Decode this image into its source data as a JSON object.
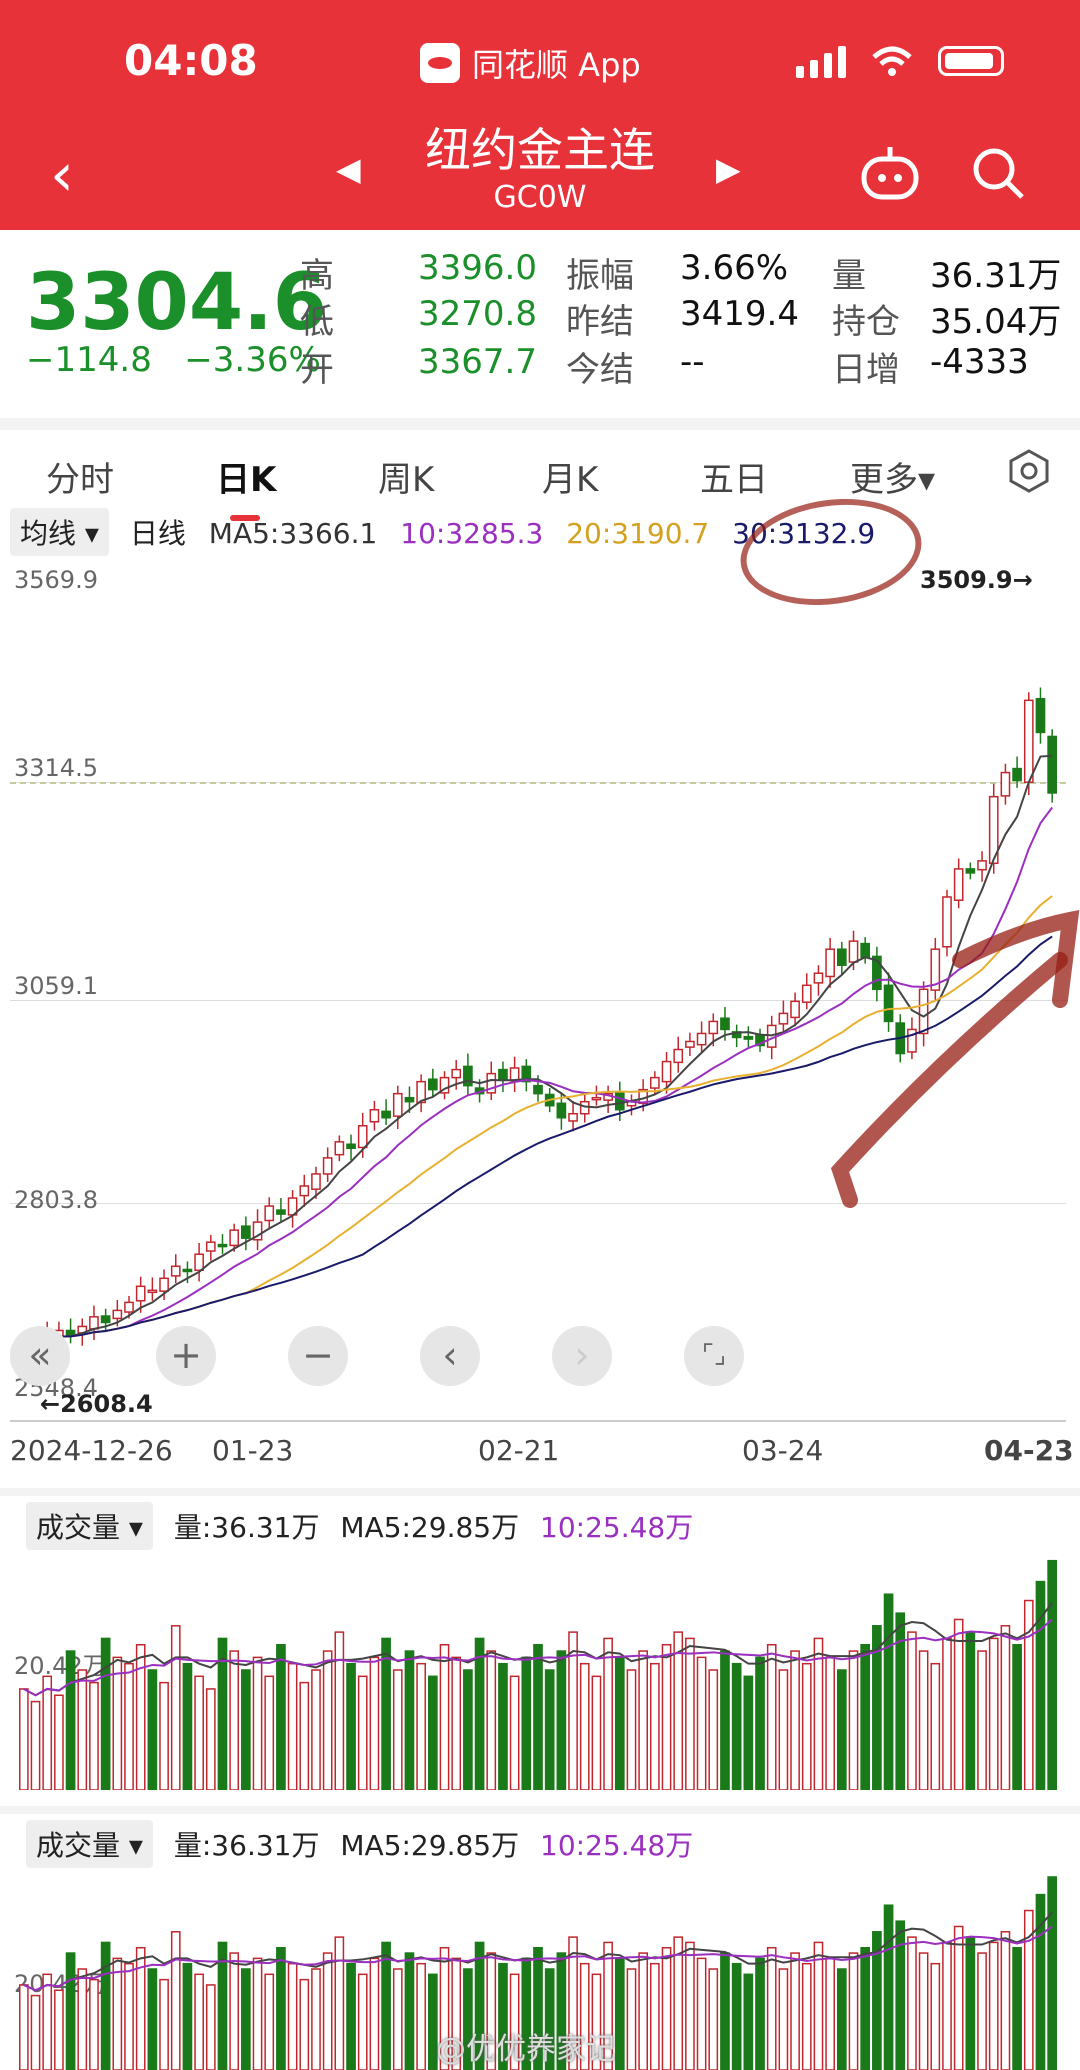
{
  "status": {
    "time": "04:08",
    "app": "同花顺 App"
  },
  "header": {
    "title": "纽约金主连",
    "code": "GC0W",
    "back": "‹",
    "prev": "◀",
    "next": "▶",
    "robot": "robot-icon",
    "search": "search-icon"
  },
  "quote": {
    "price": "3304.6",
    "change": "−114.8",
    "pct": "−3.36%",
    "rows": [
      {
        "l1": "高",
        "v1": "3396.0",
        "l2": "振幅",
        "v2": "3.66%",
        "l3": "量",
        "v3": "36.31万"
      },
      {
        "l1": "低",
        "v1": "3270.8",
        "l2": "昨结",
        "v2": "3419.4",
        "l3": "持仓",
        "v3": "35.04万"
      },
      {
        "l1": "开",
        "v1": "3367.7",
        "l2": "今结",
        "v2": "--",
        "l3": "日增",
        "v3": "-4333"
      }
    ]
  },
  "tabs": [
    "分时",
    "日K",
    "周K",
    "月K",
    "五日",
    "更多▾"
  ],
  "ma": {
    "label": "均线 ▾",
    "period": "日线",
    "ma5": "MA5:3366.1",
    "ma10": "10:3285.3",
    "ma20": "20:3190.7",
    "ma30": "30:3132.9"
  },
  "kline": {
    "yticks": [
      "3569.9",
      "3314.5",
      "3059.1",
      "2803.8",
      "2548.4"
    ],
    "high_label": "3509.9→",
    "low_label": "←2608.4",
    "xticks": [
      "2024-12-26",
      "01-23",
      "02-21",
      "03-24",
      "04-23"
    ]
  },
  "controls": [
    "«",
    "+",
    "−",
    "‹",
    "›",
    "⌜⌟"
  ],
  "volume": {
    "label": "成交量 ▾",
    "vol": "量:36.31万",
    "ma5": "MA5:29.85万",
    "ma10": "10:25.48万",
    "ytick": "20.42万"
  },
  "watermark": "@优优养家记",
  "colors": {
    "up": "#c0272d",
    "down": "#1a7a1a",
    "ma5": "#444444",
    "ma10": "#9a2fc0",
    "ma20": "#e8b030",
    "ma30": "#1a1a6a",
    "header": "#e8323a"
  },
  "chart_data": {
    "type": "candlestick",
    "ylim": [
      2548.4,
      3569.9
    ],
    "close": [
      2620,
      2625,
      2630,
      2635,
      2628,
      2640,
      2652,
      2645,
      2660,
      2670,
      2690,
      2685,
      2700,
      2715,
      2710,
      2730,
      2745,
      2740,
      2760,
      2750,
      2770,
      2790,
      2780,
      2800,
      2815,
      2830,
      2850,
      2870,
      2862,
      2890,
      2910,
      2900,
      2930,
      2920,
      2945,
      2935,
      2950,
      2960,
      2940,
      2930,
      2955,
      2948,
      2962,
      2945,
      2930,
      2915,
      2900,
      2905,
      2920,
      2925,
      2930,
      2910,
      2920,
      2935,
      2950,
      2970,
      2985,
      2995,
      3005,
      3020,
      3010,
      3000,
      2998,
      2990,
      3015,
      3030,
      3045,
      3065,
      3080,
      3110,
      3090,
      3120,
      3100,
      3060,
      3020,
      2980,
      3010,
      3060,
      3110,
      3175,
      3210,
      3205,
      3220,
      3300,
      3330,
      3320,
      3420,
      3380,
      3304.6
    ],
    "volume": [
      16,
      14,
      18,
      15,
      22,
      19,
      17,
      24,
      21,
      20,
      23,
      19,
      17,
      26,
      20,
      18,
      16,
      24,
      22,
      19,
      21,
      18,
      23,
      20,
      17,
      19,
      22,
      25,
      20,
      18,
      21,
      24,
      19,
      22,
      20,
      18,
      23,
      21,
      19,
      24,
      22,
      20,
      18,
      21,
      23,
      19,
      22,
      25,
      20,
      18,
      24,
      21,
      19,
      22,
      20,
      23,
      25,
      24,
      21,
      19,
      22,
      20,
      18,
      21,
      23,
      19,
      22,
      20,
      24,
      21,
      19,
      22,
      23,
      26,
      31,
      28,
      25,
      22,
      20,
      24,
      27,
      25,
      22,
      24,
      26,
      23,
      30,
      33,
      36.31
    ],
    "ma5_last": 3366.1,
    "ma10_last": 3285.3,
    "ma20_last": 3190.7,
    "ma30_last": 3132.9
  }
}
